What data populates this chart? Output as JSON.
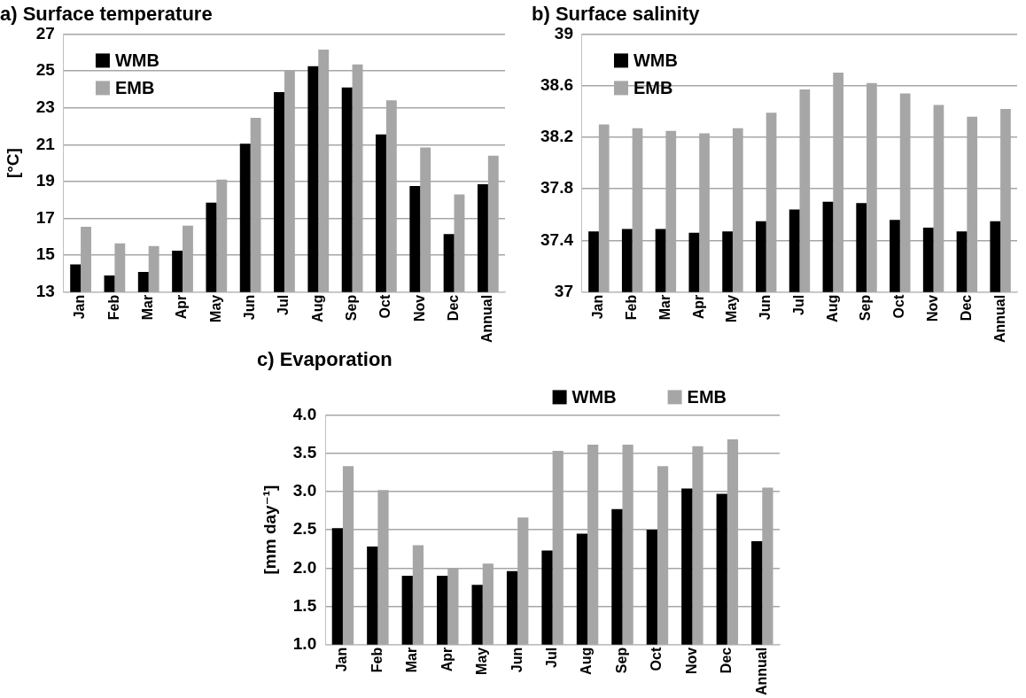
{
  "chart_data": [
    {
      "type": "bar",
      "title": "a) Surface temperature",
      "ylabel": "[°C]",
      "categories": [
        "Jan",
        "Feb",
        "Mar",
        "Apr",
        "May",
        "Jun",
        "Jul",
        "Aug",
        "Sep",
        "Oct",
        "Nov",
        "Dec",
        "Annual"
      ],
      "series": [
        {
          "name": "WMB",
          "color": "#000000",
          "values": [
            14.5,
            13.9,
            14.1,
            15.25,
            17.85,
            21.05,
            23.85,
            25.25,
            24.1,
            21.55,
            18.75,
            16.15,
            18.85
          ]
        },
        {
          "name": "EMB",
          "color": "#a6a6a6",
          "values": [
            16.55,
            15.65,
            15.5,
            16.6,
            19.1,
            22.45,
            25.0,
            26.15,
            25.35,
            23.4,
            20.85,
            18.3,
            20.4
          ]
        }
      ],
      "ylim": [
        13,
        27
      ],
      "yticks": [
        13,
        15,
        17,
        19,
        21,
        23,
        25,
        27
      ],
      "grid": "y",
      "legend": "top left"
    },
    {
      "type": "bar",
      "title": "b) Surface salinity",
      "categories": [
        "Jan",
        "Feb",
        "Mar",
        "Apr",
        "May",
        "Jun",
        "Jul",
        "Aug",
        "Sep",
        "Oct",
        "Nov",
        "Dec",
        "Annual"
      ],
      "series": [
        {
          "name": "WMB",
          "color": "#000000",
          "values": [
            37.47,
            37.49,
            37.49,
            37.46,
            37.47,
            37.55,
            37.64,
            37.7,
            37.69,
            37.56,
            37.5,
            37.47,
            37.55
          ]
        },
        {
          "name": "EMB",
          "color": "#a6a6a6",
          "values": [
            38.3,
            38.27,
            38.25,
            38.23,
            38.27,
            38.39,
            38.57,
            38.7,
            38.62,
            38.54,
            38.45,
            38.36,
            38.42
          ]
        }
      ],
      "ylim": [
        37,
        39
      ],
      "yticks": [
        37,
        37.4,
        37.8,
        38.2,
        38.6,
        39
      ],
      "grid": "y",
      "legend": "top left"
    },
    {
      "type": "bar",
      "title": "c) Evaporation",
      "ylabel": "[mm day⁻¹]",
      "categories": [
        "Jan",
        "Feb",
        "Mar",
        "Apr",
        "May",
        "Jun",
        "Jul",
        "Aug",
        "Sep",
        "Oct",
        "Nov",
        "Dec",
        "Annual"
      ],
      "series": [
        {
          "name": "WMB",
          "color": "#000000",
          "values": [
            2.52,
            2.28,
            1.9,
            1.9,
            1.78,
            1.96,
            2.23,
            2.45,
            2.77,
            2.5,
            3.04,
            2.97,
            2.35
          ]
        },
        {
          "name": "EMB",
          "color": "#a6a6a6",
          "values": [
            3.33,
            3.02,
            2.3,
            2.0,
            2.06,
            2.66,
            3.53,
            3.61,
            3.61,
            3.33,
            3.59,
            3.68,
            3.05
          ]
        }
      ],
      "ylim": [
        1,
        4
      ],
      "yticks": [
        {
          "value": 1,
          "label": "1.0"
        },
        {
          "value": 1.5,
          "label": "1.5"
        },
        {
          "value": 2,
          "label": "2.0"
        },
        {
          "value": 2.5,
          "label": "2.5"
        },
        {
          "value": 3,
          "label": "3.0"
        },
        {
          "value": 3.5,
          "label": "3.5"
        },
        {
          "value": 4,
          "label": "4.0"
        }
      ],
      "grid": "y",
      "legend": "top"
    }
  ]
}
